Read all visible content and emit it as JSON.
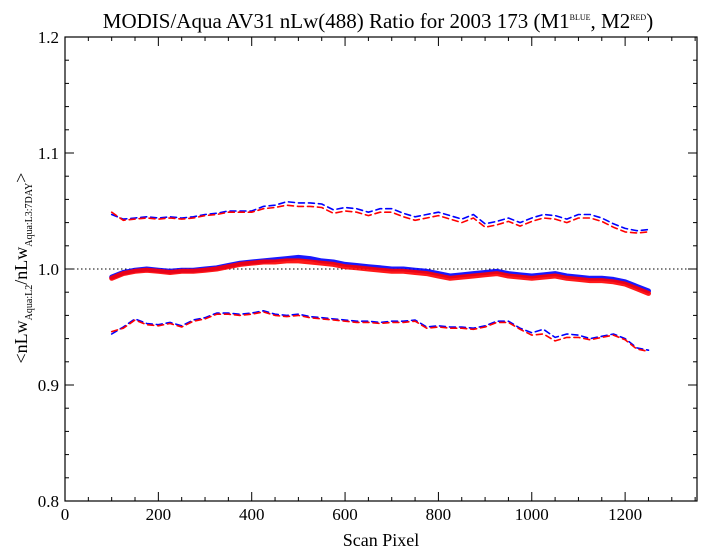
{
  "chart_data": {
    "type": "line",
    "title": {
      "main": "MODIS/Aqua AV31 nLw(488) Ratio for 2003 173 (M1",
      "sup1": "BLUE",
      "mid": ", M2",
      "sup2": "RED",
      "end": ")"
    },
    "xlabel": "Scan Pixel",
    "ylabel": {
      "open": "<nLw",
      "sub1": "Aqua:L2",
      "mid": "/nLw",
      "sub2": "Aqua:L3:7DAY",
      "close": ">"
    },
    "xlim": [
      0,
      1354
    ],
    "ylim": [
      0.8,
      1.2
    ],
    "xticks": [
      0,
      200,
      400,
      600,
      800,
      1000,
      1200
    ],
    "xtick_labels": [
      "0",
      "200",
      "400",
      "600",
      "800",
      "1000",
      "1200"
    ],
    "yticks": [
      0.8,
      0.9,
      1.0,
      1.1,
      1.2
    ],
    "ytick_labels": [
      "0.8",
      "0.9",
      "1.0",
      "1.1",
      "1.2"
    ],
    "reference_line": 1.0,
    "grid": false,
    "x": [
      100,
      125,
      150,
      175,
      200,
      225,
      250,
      275,
      300,
      325,
      350,
      375,
      400,
      425,
      450,
      475,
      500,
      525,
      550,
      575,
      600,
      625,
      650,
      675,
      700,
      725,
      750,
      775,
      800,
      825,
      850,
      875,
      900,
      925,
      950,
      975,
      1000,
      1025,
      1050,
      1075,
      1100,
      1125,
      1150,
      1175,
      1200,
      1225,
      1250
    ],
    "series": [
      {
        "color": "#0000ff",
        "style": "solid",
        "values": [
          0.993,
          0.997,
          0.999,
          1.0,
          0.999,
          0.998,
          0.999,
          0.999,
          1.0,
          1.001,
          1.003,
          1.005,
          1.006,
          1.007,
          1.008,
          1.009,
          1.01,
          1.009,
          1.007,
          1.006,
          1.004,
          1.003,
          1.002,
          1.001,
          1.0,
          1.0,
          0.999,
          0.998,
          0.996,
          0.994,
          0.995,
          0.996,
          0.997,
          0.998,
          0.996,
          0.995,
          0.994,
          0.995,
          0.996,
          0.994,
          0.993,
          0.992,
          0.992,
          0.991,
          0.989,
          0.985,
          0.981
        ]
      },
      {
        "color": "#ff0000",
        "style": "solid",
        "values": [
          0.992,
          0.996,
          0.998,
          0.999,
          0.998,
          0.997,
          0.998,
          0.998,
          0.999,
          1.0,
          1.002,
          1.004,
          1.005,
          1.006,
          1.006,
          1.007,
          1.007,
          1.006,
          1.005,
          1.004,
          1.002,
          1.001,
          1.0,
          0.999,
          0.998,
          0.998,
          0.997,
          0.996,
          0.994,
          0.992,
          0.993,
          0.994,
          0.995,
          0.996,
          0.994,
          0.993,
          0.992,
          0.993,
          0.994,
          0.992,
          0.991,
          0.99,
          0.99,
          0.989,
          0.987,
          0.983,
          0.979
        ]
      },
      {
        "color": "#0000ff",
        "style": "dashed",
        "values": [
          1.047,
          1.043,
          1.044,
          1.045,
          1.044,
          1.045,
          1.044,
          1.045,
          1.047,
          1.048,
          1.05,
          1.05,
          1.05,
          1.054,
          1.055,
          1.058,
          1.057,
          1.057,
          1.056,
          1.051,
          1.053,
          1.052,
          1.049,
          1.052,
          1.052,
          1.048,
          1.045,
          1.047,
          1.049,
          1.046,
          1.043,
          1.047,
          1.039,
          1.041,
          1.044,
          1.04,
          1.044,
          1.047,
          1.046,
          1.043,
          1.047,
          1.047,
          1.044,
          1.039,
          1.035,
          1.033,
          1.034
        ]
      },
      {
        "color": "#ff0000",
        "style": "dashed",
        "values": [
          1.049,
          1.042,
          1.043,
          1.044,
          1.043,
          1.044,
          1.043,
          1.044,
          1.046,
          1.047,
          1.049,
          1.049,
          1.049,
          1.052,
          1.053,
          1.055,
          1.054,
          1.054,
          1.053,
          1.048,
          1.05,
          1.049,
          1.046,
          1.049,
          1.049,
          1.045,
          1.042,
          1.044,
          1.046,
          1.043,
          1.04,
          1.044,
          1.036,
          1.038,
          1.041,
          1.037,
          1.041,
          1.044,
          1.043,
          1.04,
          1.044,
          1.044,
          1.041,
          1.036,
          1.032,
          1.031,
          1.032
        ]
      },
      {
        "color": "#0000ff",
        "style": "dashed",
        "values": [
          0.944,
          0.95,
          0.957,
          0.953,
          0.952,
          0.954,
          0.951,
          0.956,
          0.958,
          0.962,
          0.962,
          0.961,
          0.962,
          0.964,
          0.961,
          0.96,
          0.961,
          0.959,
          0.958,
          0.957,
          0.956,
          0.955,
          0.955,
          0.954,
          0.955,
          0.955,
          0.956,
          0.95,
          0.951,
          0.95,
          0.95,
          0.949,
          0.951,
          0.955,
          0.955,
          0.949,
          0.945,
          0.948,
          0.941,
          0.944,
          0.943,
          0.94,
          0.942,
          0.944,
          0.94,
          0.932,
          0.93
        ]
      },
      {
        "color": "#ff0000",
        "style": "dashed",
        "values": [
          0.946,
          0.949,
          0.956,
          0.952,
          0.951,
          0.953,
          0.95,
          0.955,
          0.957,
          0.961,
          0.961,
          0.96,
          0.961,
          0.963,
          0.96,
          0.959,
          0.96,
          0.958,
          0.957,
          0.956,
          0.955,
          0.954,
          0.954,
          0.953,
          0.954,
          0.954,
          0.955,
          0.949,
          0.95,
          0.949,
          0.949,
          0.948,
          0.95,
          0.954,
          0.954,
          0.948,
          0.943,
          0.944,
          0.938,
          0.941,
          0.941,
          0.939,
          0.941,
          0.943,
          0.939,
          0.931,
          0.929
        ]
      }
    ]
  }
}
